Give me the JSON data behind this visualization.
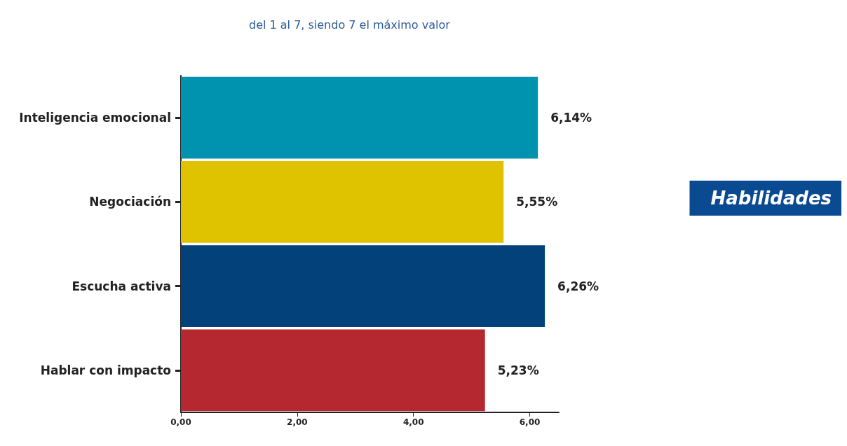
{
  "chart_data": {
    "type": "bar",
    "orientation": "horizontal",
    "title": "Habilidades",
    "subtitle": "del 1 al 7, siendo 7 el máximo valor",
    "categories": [
      "Inteligencia emocional",
      "Negociación",
      "Escucha activa",
      "Hablar con impacto"
    ],
    "values": [
      6.14,
      5.55,
      6.26,
      5.23
    ],
    "colors": [
      "#0093b0",
      "#dfc200",
      "#02417a",
      "#b5282f"
    ],
    "value_labels": [
      "6,14%",
      "5,55%",
      "6,26%",
      "5,23%"
    ],
    "xlim": [
      0,
      6.5
    ],
    "xticks": [
      {
        "value": 0,
        "label": "0,00"
      },
      {
        "value": 2,
        "label": "2,00"
      },
      {
        "value": 4,
        "label": "4,00"
      },
      {
        "value": 6,
        "label": "6,00"
      }
    ],
    "grid": false
  }
}
